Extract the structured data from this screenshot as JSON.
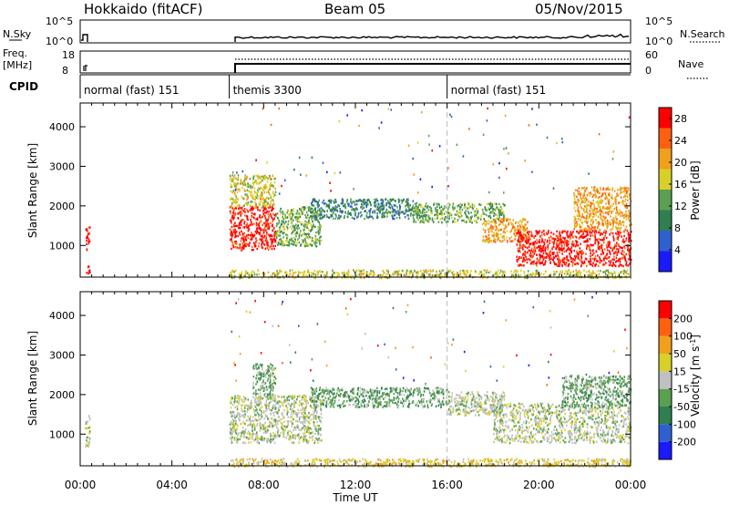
{
  "header": {
    "station": "Hokkaido (fitACF)",
    "beam": "Beam 05",
    "date": "05/Nov/2015"
  },
  "strips": {
    "nsky": {
      "label": "N.Sky",
      "ticks": [
        "10^5",
        "10^0"
      ],
      "right_ticks": [
        "10^5",
        "10^0"
      ],
      "right_label": "N.Search"
    },
    "freq": {
      "label_top": "Freq.",
      "label_bot": "[MHz]",
      "ticks": [
        "18",
        "8"
      ],
      "right_ticks": [
        "60",
        "0"
      ],
      "right_label": "Nave"
    },
    "cpid": {
      "label": "CPID"
    }
  },
  "chart_data": [
    {
      "type": "timeline",
      "title": "CPID",
      "x": [
        0,
        24
      ],
      "segments": [
        {
          "start": 0.0,
          "end": 6.5,
          "label": "normal (fast) 151"
        },
        {
          "start": 6.5,
          "end": 16.0,
          "label": "themis 3300"
        },
        {
          "start": 16.0,
          "end": 24.0,
          "label": "normal (fast) 151"
        }
      ]
    },
    {
      "type": "heatmap",
      "ylabel": "Slant Range [km]",
      "x": [
        0,
        24
      ],
      "ylim": [
        200,
        4600
      ],
      "yticks": [
        1000,
        2000,
        3000,
        4000
      ],
      "colorbar": {
        "label": "Power [dB]",
        "ticks": [
          4,
          8,
          12,
          16,
          20,
          24,
          28
        ],
        "range": [
          0,
          30
        ],
        "colors": [
          "#1a1aff",
          "#3060d0",
          "#2f7f50",
          "#5aa050",
          "#d8d02a",
          "#f0a01a",
          "#ff6010",
          "#ff0000"
        ]
      },
      "regions": [
        {
          "t": [
            0.2,
            0.4
          ],
          "r": [
            900,
            1500
          ],
          "level": 7
        },
        {
          "t": [
            0.2,
            0.4
          ],
          "r": [
            300,
            500
          ],
          "level": 7
        },
        {
          "t": [
            6.5,
            8.5
          ],
          "r": [
            900,
            2000
          ],
          "level": 7
        },
        {
          "t": [
            6.5,
            8.5
          ],
          "r": [
            2000,
            2800
          ],
          "level": 4
        },
        {
          "t": [
            8.5,
            10.5
          ],
          "r": [
            1000,
            2000
          ],
          "level": 3
        },
        {
          "t": [
            10.0,
            14.5
          ],
          "r": [
            1700,
            2200
          ],
          "level": 2
        },
        {
          "t": [
            14.5,
            18.5
          ],
          "r": [
            1600,
            2100
          ],
          "level": 3
        },
        {
          "t": [
            17.5,
            19.5
          ],
          "r": [
            1100,
            1700
          ],
          "level": 5
        },
        {
          "t": [
            19.0,
            24.0
          ],
          "r": [
            500,
            1400
          ],
          "level": 7
        },
        {
          "t": [
            21.5,
            24.0
          ],
          "r": [
            1400,
            2500
          ],
          "level": 5
        },
        {
          "t": [
            6.5,
            24.0
          ],
          "r": [
            200,
            400
          ],
          "level": 4
        }
      ]
    },
    {
      "type": "heatmap",
      "ylabel": "Slant Range [km]",
      "xlabel": "Time UT",
      "x": [
        0,
        24
      ],
      "xticks": [
        "00:00",
        "04:00",
        "08:00",
        "12:00",
        "16:00",
        "20:00",
        "00:00"
      ],
      "ylim": [
        200,
        4600
      ],
      "yticks": [
        1000,
        2000,
        3000,
        4000
      ],
      "colorbar": {
        "label": "Velocity [m s^-1]",
        "ticks": [
          200,
          100,
          50,
          15,
          -15,
          -50,
          -100,
          -200
        ],
        "colors": [
          "#1a1aff",
          "#3060d0",
          "#2f7f50",
          "#5aa050",
          "#c0c0c0",
          "#d8d02a",
          "#f0a01a",
          "#ff6010",
          "#ff0000"
        ]
      },
      "regions": [
        {
          "t": [
            0.2,
            0.4
          ],
          "r": [
            700,
            1500
          ],
          "level": 4
        },
        {
          "t": [
            6.5,
            10.5
          ],
          "r": [
            800,
            2000
          ],
          "level": 4
        },
        {
          "t": [
            7.5,
            8.5
          ],
          "r": [
            2000,
            2800
          ],
          "level": 3
        },
        {
          "t": [
            10.0,
            16.0
          ],
          "r": [
            1700,
            2200
          ],
          "level": 3
        },
        {
          "t": [
            16.0,
            18.5
          ],
          "r": [
            1500,
            2100
          ],
          "level": 4
        },
        {
          "t": [
            18.0,
            24.0
          ],
          "r": [
            800,
            1800
          ],
          "level": 4
        },
        {
          "t": [
            21.0,
            24.0
          ],
          "r": [
            1700,
            2500
          ],
          "level": 3
        },
        {
          "t": [
            6.5,
            24.0
          ],
          "r": [
            200,
            400
          ],
          "level": 5
        }
      ]
    }
  ]
}
